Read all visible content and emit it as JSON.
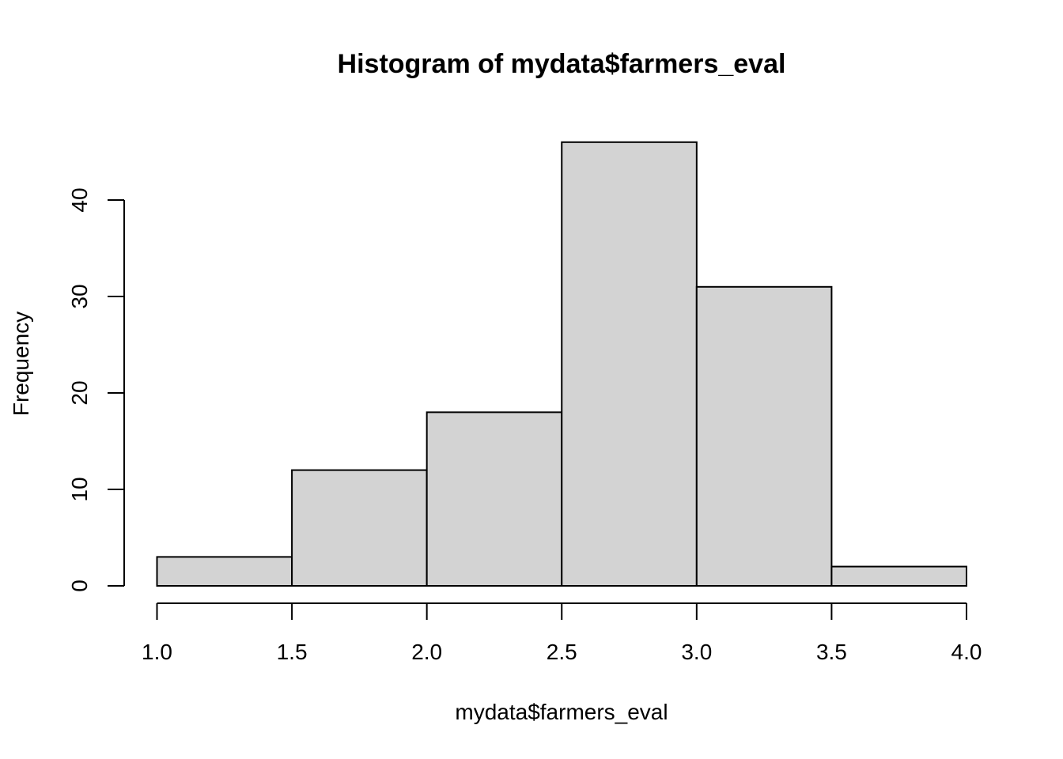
{
  "chart_data": {
    "type": "bar",
    "title": "Histogram of mydata$farmers_eval",
    "xlabel": "mydata$farmers_eval",
    "ylabel": "Frequency",
    "bins": [
      {
        "from": 1.0,
        "to": 1.5,
        "count": 3
      },
      {
        "from": 1.5,
        "to": 2.0,
        "count": 12
      },
      {
        "from": 2.0,
        "to": 2.5,
        "count": 18
      },
      {
        "from": 2.5,
        "to": 3.0,
        "count": 46
      },
      {
        "from": 3.0,
        "to": 3.5,
        "count": 31
      },
      {
        "from": 3.5,
        "to": 4.0,
        "count": 2
      }
    ],
    "x_ticks": [
      "1.0",
      "1.5",
      "2.0",
      "2.5",
      "3.0",
      "3.5",
      "4.0"
    ],
    "y_ticks": [
      "0",
      "10",
      "20",
      "30",
      "40"
    ],
    "xlim": [
      1.0,
      4.0
    ],
    "ylim": [
      0,
      46
    ],
    "grid": false,
    "bar_color": "#d3d3d3",
    "edge_color": "#000000"
  }
}
